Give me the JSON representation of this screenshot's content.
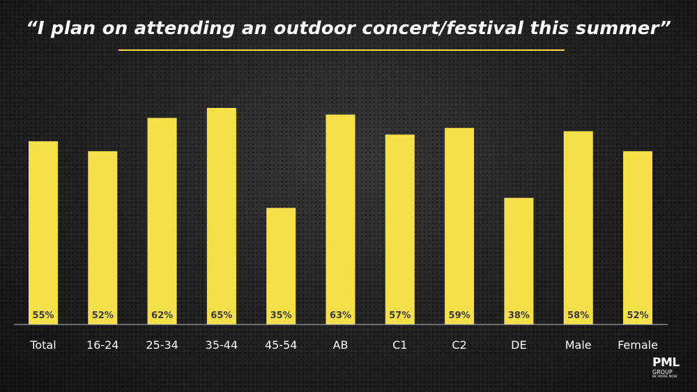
{
  "chart_data": {
    "type": "bar",
    "title": "“I plan on attending an outdoor concert/festival this summer”",
    "categories": [
      "Total",
      "16-24",
      "25-34",
      "35-44",
      "45-54",
      "AB",
      "C1",
      "C2",
      "DE",
      "Male",
      "Female"
    ],
    "values": [
      55,
      52,
      62,
      65,
      35,
      63,
      57,
      59,
      38,
      58,
      52
    ],
    "value_labels": [
      "55%",
      "52%",
      "62%",
      "65%",
      "35%",
      "63%",
      "57%",
      "59%",
      "38%",
      "58%",
      "52%"
    ],
    "xlabel": "",
    "ylabel": "",
    "ylim": [
      0,
      68
    ],
    "grid": false,
    "bar_color": "#f5e04a",
    "label_color": "#3a3a3a"
  },
  "logo": {
    "name": "PML",
    "sub": "GROUP",
    "tagline": "BE MORE NOW"
  },
  "colors": {
    "background": "#1e1e1e",
    "accent": "#f5d740",
    "text": "#ffffff"
  }
}
